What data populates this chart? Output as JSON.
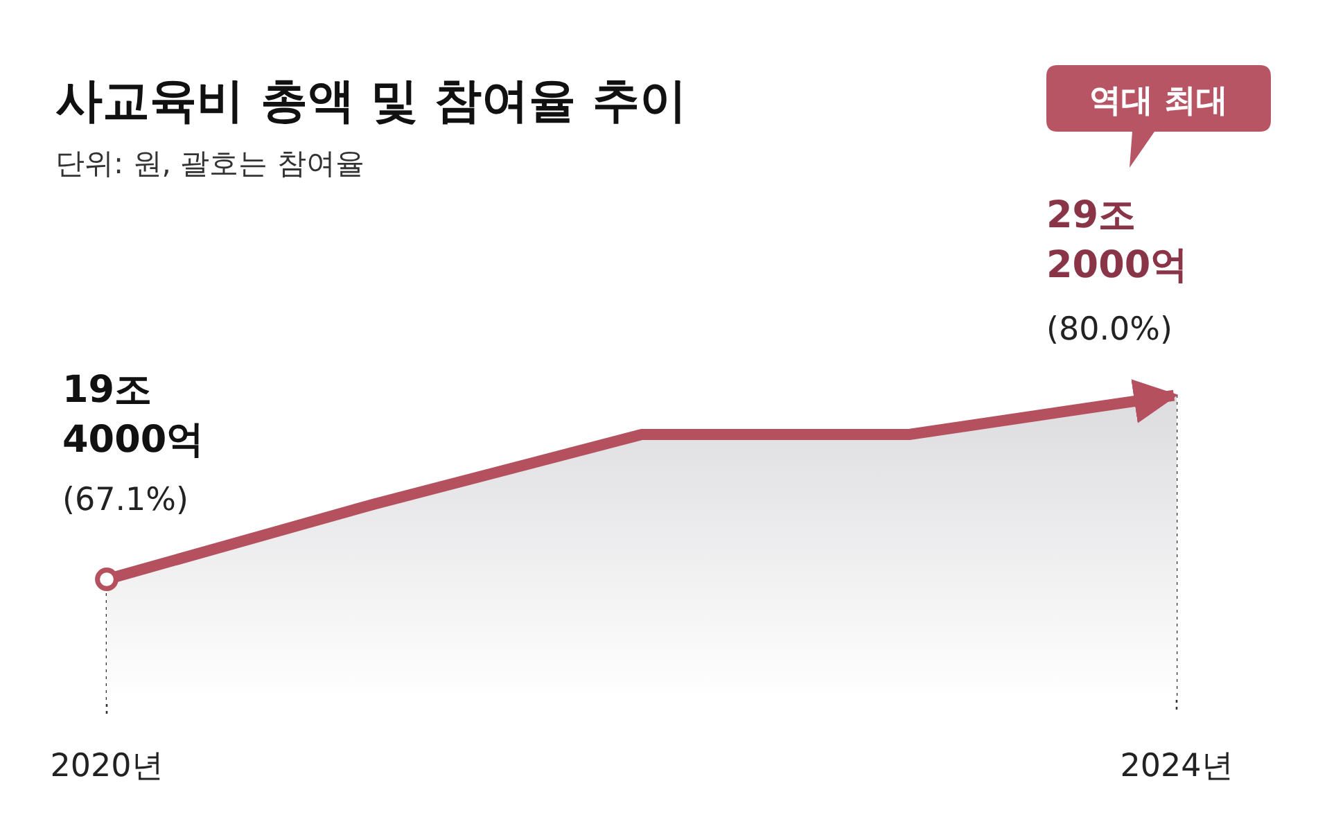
{
  "chart_data": {
    "type": "area",
    "title": "사교육비 총액 및 참여율 추이",
    "subtitle": "단위: 원, 괄호는 참여율",
    "categories": [
      "2020년",
      null,
      null,
      null,
      "2024년"
    ],
    "values": [
      19.4,
      23.4,
      27.1,
      27.1,
      29.2
    ],
    "color": "#b5505f",
    "value_labels": [
      "19조 4000억",
      null,
      null,
      null,
      "29조 2000억"
    ],
    "ref_lines": [
      {
        "axis": "x",
        "value": "2020년",
        "line_style": "dotted",
        "color": "#333333"
      },
      {
        "axis": "x",
        "value": "2024년",
        "line_style": "dotted",
        "color": "#333333"
      }
    ],
    "annotations": [
      {
        "text": "(67.1%)",
        "x": "2020년",
        "y": 19.4
      },
      {
        "text": "(80.0%)",
        "x": "2024년",
        "y": 29.2
      },
      "역대 최대"
    ]
  }
}
